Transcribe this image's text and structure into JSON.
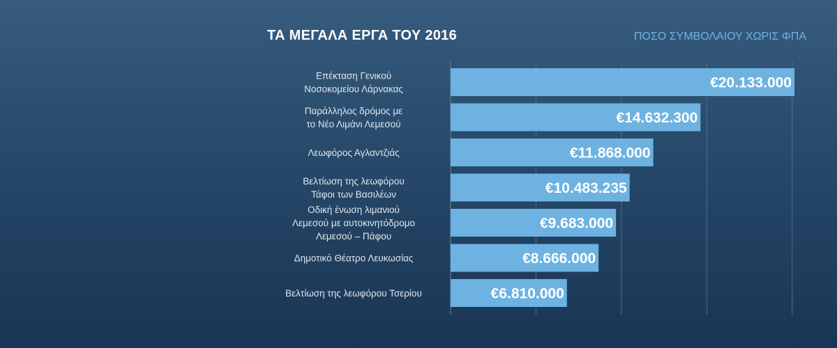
{
  "chart_data": {
    "type": "bar",
    "orientation": "horizontal",
    "title": "ΤΑ ΜΕΓΑΛΑ ΕΡΓΑ ΤΟΥ 2016",
    "subtitle": "ΠΟΣΟ ΣΥΜΒΟΛΑΙΟΥ ΧΩΡΙΣ ΦΠΑ",
    "categories": [
      [
        "Επέκταση Γενικού",
        "Νοσοκομείου Λάρνακας"
      ],
      [
        "Παράλληλος δρόμος με",
        "το Νέο Λιμάνι Λεμεσού"
      ],
      [
        "Λεωφόρος Αγλαντζιάς"
      ],
      [
        "Βελτίωση της λεωφόρου",
        "Τάφοι των Βασιλέων"
      ],
      [
        "Οδική ένωση λιμανιού",
        "Λεμεσού με αυτοκινητόδρομο",
        "Λεμεσού – Πάφου"
      ],
      [
        "Δημοτικό Θέατρο Λευκωσίας"
      ],
      [
        "Βελτίωση της λεωφόρου Τσερίου"
      ]
    ],
    "values": [
      20133000,
      14632300,
      11868000,
      10483235,
      9683000,
      8666000,
      6810000
    ],
    "value_labels": [
      "€20.133.000",
      "€14.632.300",
      "€11.868.000",
      "€10.483.235",
      "€9.683.000",
      "€8.666.000",
      "€6.810.000"
    ],
    "xlim": [
      0,
      21000000
    ],
    "grid": true,
    "bar_color": "#6db2e0",
    "grid_color": "#4e6f8f"
  }
}
